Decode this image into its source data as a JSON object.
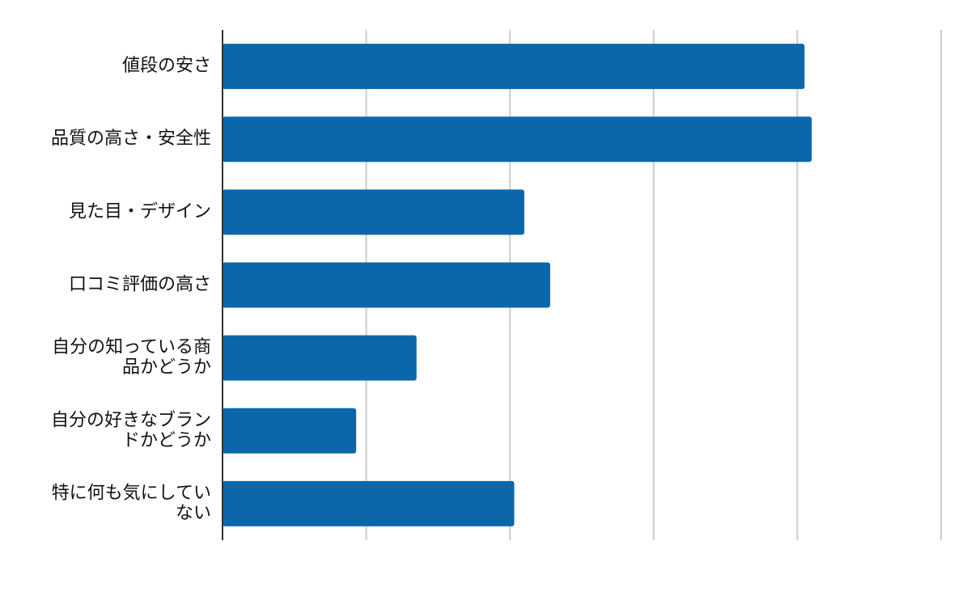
{
  "chart_data": {
    "type": "bar",
    "orientation": "horizontal",
    "categories": [
      [
        "値段の安さ"
      ],
      [
        "品質の高さ・安全性"
      ],
      [
        "見た目・デザイン"
      ],
      [
        "口コミ評価の高さ"
      ],
      [
        "自分の知っている商",
        "品かどうか"
      ],
      [
        "自分の好きなブラン",
        "ドかどうか"
      ],
      [
        "特に何も気にしてい",
        "ない"
      ]
    ],
    "values": [
      40.5,
      41.0,
      21.0,
      22.8,
      13.5,
      9.3,
      20.3
    ],
    "xlim": [
      0,
      50
    ],
    "x_gridlines": [
      10,
      20,
      30,
      40,
      50
    ],
    "grid": true,
    "legend": "none",
    "bar_color": "#0b67aa",
    "axis_color": "#333333",
    "grid_color": "#cccccc",
    "label_color": "#111111"
  }
}
